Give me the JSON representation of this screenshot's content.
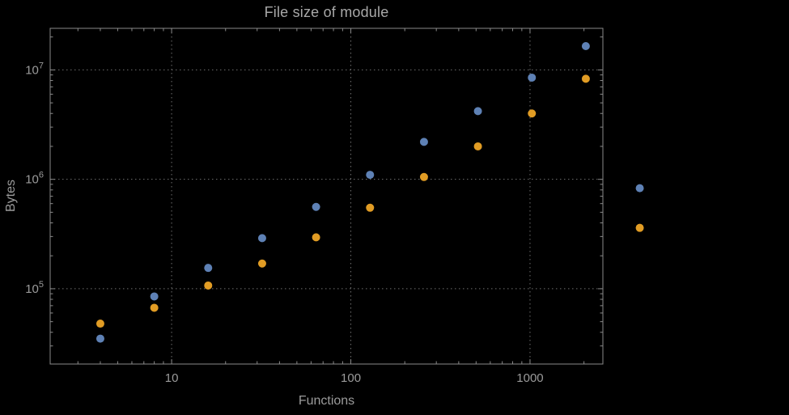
{
  "chart_data": {
    "type": "scatter",
    "title": "File size of module",
    "xlabel": "Functions",
    "ylabel": "Bytes",
    "xscale": "log",
    "yscale": "log",
    "xlim": [
      2.1,
      2550
    ],
    "ylim": [
      20500,
      24000000
    ],
    "grid": "dotted-major",
    "legend": "none",
    "x": [
      4,
      8,
      16,
      32,
      64,
      128,
      256,
      512,
      1024,
      2048,
      4096
    ],
    "series": [
      {
        "name": "series-blue",
        "color": "#5E81B5",
        "values": [
          35000,
          85000,
          155000,
          290000,
          560000,
          1100000,
          2200000,
          4200000,
          8500000,
          16500000,
          830000
        ]
      },
      {
        "name": "series-orange",
        "color": "#E19C24",
        "values": [
          48000,
          67000,
          107000,
          170000,
          295000,
          550000,
          1050000,
          2000000,
          4000000,
          8300000,
          360000
        ]
      }
    ],
    "xticks": [
      {
        "value": 10,
        "label": "10"
      },
      {
        "value": 100,
        "label": "100"
      },
      {
        "value": 1000,
        "label": "1000"
      }
    ],
    "yticks": [
      {
        "value": 100000,
        "base": "10",
        "exp": "5"
      },
      {
        "value": 1000000,
        "base": "10",
        "exp": "6"
      },
      {
        "value": 10000000,
        "base": "10",
        "exp": "7"
      }
    ],
    "colors": {
      "background": "#000000",
      "frame": "#8a8a8a",
      "grid": "#6f6f6f",
      "text": "#9b9b9b",
      "title_text": "#a8a8a8"
    }
  }
}
